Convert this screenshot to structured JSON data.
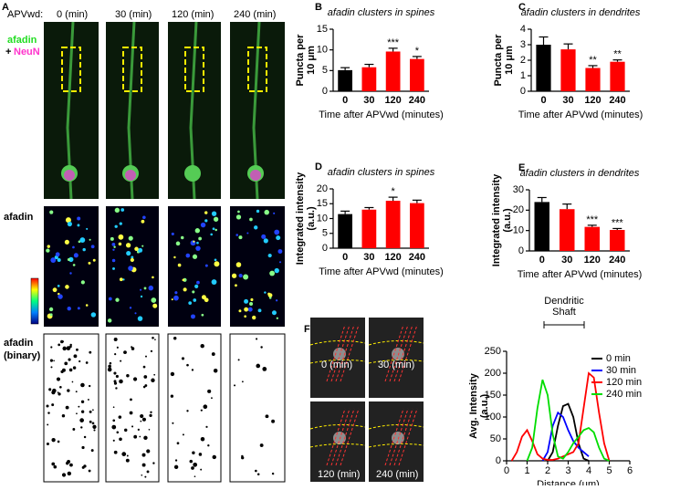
{
  "figure": {
    "panel_a": "A",
    "condition_prefix": "APVwd:",
    "times": [
      "0 (min)",
      "30 (min)",
      "120 (min)",
      "240 (min)"
    ],
    "stain_labels": [
      "afadin",
      "+",
      "NeuN"
    ],
    "row_labels": [
      "afadin",
      "afadin",
      "(binary)"
    ],
    "panel_f_times": [
      "0 (min)",
      "30 (min)",
      "120 (min)",
      "240 (min)"
    ]
  },
  "chart_data": [
    {
      "type": "bar",
      "panel": "B",
      "title": "afadin clusters in spines",
      "ylabel": [
        "Puncta per",
        "10 μm"
      ],
      "xlabel": "Time after APVwd (minutes)",
      "categories": [
        "0",
        "30",
        "120",
        "240"
      ],
      "values": [
        5.1,
        5.8,
        9.6,
        7.8
      ],
      "errors": [
        0.6,
        0.7,
        0.8,
        0.6
      ],
      "colors": [
        "#000000",
        "#ff0000",
        "#ff0000",
        "#ff0000"
      ],
      "significance": [
        null,
        null,
        "***",
        "*"
      ],
      "ylim": [
        0,
        15
      ],
      "yticks": [
        0,
        5,
        10,
        15
      ]
    },
    {
      "type": "bar",
      "panel": "C",
      "title": "afadin clusters in dendrites",
      "ylabel": [
        "Puncta per",
        "10 μm"
      ],
      "xlabel": "Time after APVwd (minutes)",
      "categories": [
        "0",
        "30",
        "120",
        "240"
      ],
      "values": [
        3.0,
        2.7,
        1.5,
        1.9
      ],
      "errors": [
        0.5,
        0.35,
        0.15,
        0.12
      ],
      "colors": [
        "#000000",
        "#ff0000",
        "#ff0000",
        "#ff0000"
      ],
      "significance": [
        null,
        null,
        "**",
        "**"
      ],
      "ylim": [
        0,
        4
      ],
      "yticks": [
        0,
        1,
        2,
        3,
        4
      ]
    },
    {
      "type": "bar",
      "panel": "D",
      "title": "afadin clusters in spines",
      "ylabel": [
        "Integrated intensity",
        "(a.u.)"
      ],
      "xlabel": "Time after APVwd (minutes)",
      "categories": [
        "0",
        "30",
        "120",
        "240"
      ],
      "values": [
        11.5,
        13,
        16,
        15.2
      ],
      "errors": [
        1,
        0.7,
        1.2,
        1
      ],
      "colors": [
        "#000000",
        "#ff0000",
        "#ff0000",
        "#ff0000"
      ],
      "significance": [
        null,
        null,
        "*",
        null
      ],
      "ylim": [
        0,
        20
      ],
      "yticks": [
        0,
        5,
        10,
        15,
        20
      ]
    },
    {
      "type": "bar",
      "panel": "E",
      "title": "afadin clusters in dendrites",
      "ylabel": [
        "Integrated intensity",
        "(a.u.)"
      ],
      "xlabel": "Time after APVwd (minutes)",
      "categories": [
        "0",
        "30",
        "120",
        "240"
      ],
      "values": [
        24,
        20.5,
        11.8,
        10.3
      ],
      "errors": [
        2.2,
        2.5,
        0.8,
        0.7
      ],
      "colors": [
        "#000000",
        "#ff0000",
        "#ff0000",
        "#ff0000"
      ],
      "significance": [
        null,
        null,
        "***",
        "***"
      ],
      "ylim": [
        0,
        30
      ],
      "yticks": [
        0,
        10,
        20,
        30
      ]
    },
    {
      "type": "line",
      "panel": "F",
      "ylabel": [
        "Avg. Intensity",
        "(a.u.)"
      ],
      "xlabel": "Distance (μm)",
      "annotation": [
        "Dendritic",
        "Shaft"
      ],
      "legend": "upper right",
      "x": [
        0.25,
        0.5,
        0.75,
        1,
        1.25,
        1.5,
        1.75,
        2,
        2.25,
        2.5,
        2.75,
        3,
        3.25,
        3.5,
        3.75,
        4,
        4.25,
        4.5,
        4.75,
        5
      ],
      "series": [
        {
          "name": "0 min",
          "color": "#000000",
          "values": [
            null,
            null,
            null,
            null,
            null,
            null,
            null,
            0,
            20,
            80,
            125,
            130,
            100,
            40,
            5,
            0,
            null,
            null,
            null,
            null
          ]
        },
        {
          "name": "30 min",
          "color": "#0000ff",
          "values": [
            null,
            null,
            null,
            null,
            null,
            null,
            0,
            20,
            80,
            110,
            100,
            70,
            45,
            30,
            20,
            10,
            null,
            null,
            null,
            null
          ]
        },
        {
          "name": "120 min",
          "color": "#ff0000",
          "values": [
            0,
            20,
            55,
            70,
            45,
            15,
            5,
            2,
            2,
            5,
            10,
            15,
            20,
            40,
            120,
            200,
            190,
            110,
            40,
            0
          ]
        },
        {
          "name": "240 min",
          "color": "#00dd00",
          "values": [
            null,
            null,
            null,
            0,
            30,
            120,
            185,
            150,
            60,
            10,
            5,
            20,
            40,
            55,
            70,
            75,
            65,
            30,
            5,
            0
          ]
        }
      ],
      "xlim": [
        0,
        6
      ],
      "xticks": [
        0,
        1,
        2,
        3,
        4,
        5,
        6
      ],
      "ylim": [
        0,
        250
      ],
      "yticks": [
        0,
        50,
        100,
        150,
        200,
        250
      ]
    }
  ]
}
